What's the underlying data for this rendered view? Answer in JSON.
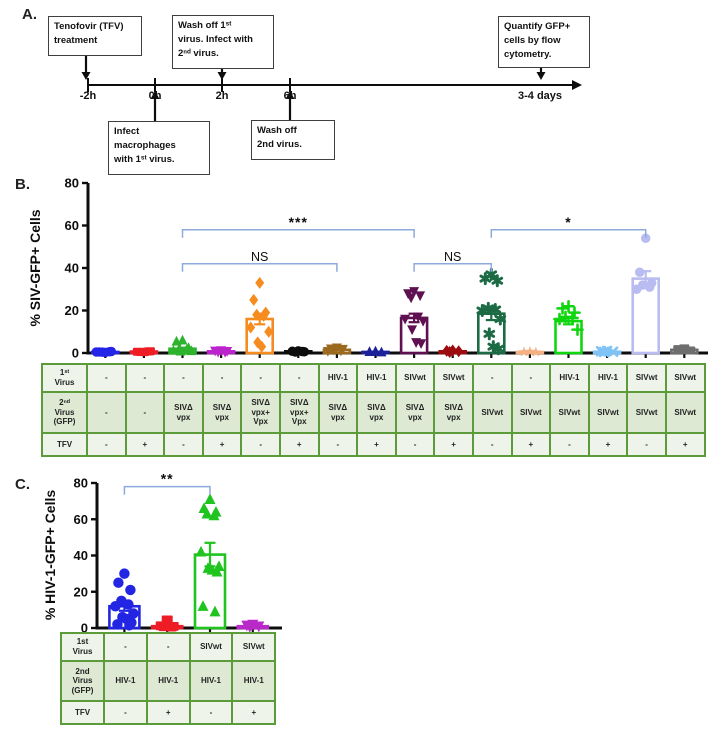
{
  "panel_a": {
    "label": "A.",
    "boxes": [
      "Tenofovir (TFV)\ntreatment",
      "Wash off 1ˢᵗ\nvirus. Infect with\n2ⁿᵈ virus.",
      "Quantify GFP+\ncells by flow\ncytometry.",
      "Infect\nmacrophages\nwith 1ˢᵗ virus.",
      "Wash off\n2nd virus."
    ],
    "tick_labels": [
      "-2h",
      "0h",
      "2h",
      "6h",
      "3-4 days"
    ]
  },
  "panel_b": {
    "label": "B."
  },
  "panel_c": {
    "label": "C."
  },
  "colors": {
    "bracket": "#8ea9db",
    "axis": "#0d0d0d",
    "table_border": "#5b9b3a",
    "table_bg_light": "#eff4ea",
    "table_bg_dark": "#dde9d3"
  },
  "chart_data": [
    {
      "type": "scatter-bar",
      "title": "",
      "ylabel": "% SIV-GFP+ Cells",
      "xlabel": "",
      "ylim": [
        0,
        80
      ],
      "yticks": [
        0,
        20,
        40,
        60,
        80
      ],
      "grid": false,
      "groups": [
        {
          "marker": "circle",
          "color": "#2424e8",
          "mean": 0.5,
          "sem": 0,
          "points": [
            0.3,
            0.5,
            0.7,
            0.4,
            0.6,
            0.5
          ]
        },
        {
          "marker": "square",
          "color": "#ee1c25",
          "mean": 0.7,
          "sem": 0,
          "points": [
            0.4,
            0.6,
            0.8,
            0.5,
            0.7
          ]
        },
        {
          "marker": "triangle-up",
          "color": "#2db32d",
          "mean": 2,
          "sem": 0.5,
          "points": [
            6,
            5.5,
            2.5,
            2,
            1.5,
            1.2,
            1,
            0.8
          ]
        },
        {
          "marker": "triangle-down",
          "color": "#bb23cc",
          "mean": 0.8,
          "sem": 0,
          "points": [
            1.2,
            1,
            0.8,
            0.5,
            0.4
          ]
        },
        {
          "marker": "diamond",
          "color": "#f68b1f",
          "mean": 16,
          "sem": 2.5,
          "points": [
            33,
            25,
            19,
            18,
            17.5,
            12,
            10,
            5,
            3
          ]
        },
        {
          "marker": "circle",
          "color": "#0d0d0d",
          "mean": 0.8,
          "sem": 0,
          "points": [
            1,
            0.8,
            0.6,
            0.5,
            0.7
          ]
        },
        {
          "marker": "triangle-down",
          "color": "#9b6a1f",
          "mean": 1.5,
          "sem": 0,
          "points": [
            2.5,
            2,
            1.8,
            1.5,
            1,
            0.8
          ]
        },
        {
          "marker": "triangle-up",
          "color": "#1c2099",
          "mean": 0.5,
          "sem": 0,
          "points": [
            0.8,
            0.6,
            0.4
          ]
        },
        {
          "marker": "triangle-down",
          "color": "#5e1050",
          "mean": 16.5,
          "sem": 2,
          "points": [
            29,
            28,
            27,
            26,
            17,
            16,
            15,
            11,
            5,
            4.5
          ]
        },
        {
          "marker": "diamond",
          "color": "#9e0b0f",
          "mean": 0.8,
          "sem": 0,
          "points": [
            1.2,
            1,
            0.8,
            0.5
          ]
        },
        {
          "marker": "snowflake",
          "color": "#1c6b45",
          "mean": 18.5,
          "sem": 3,
          "points": [
            37,
            35,
            34,
            21,
            20.5,
            20,
            16,
            9,
            3,
            2
          ]
        },
        {
          "marker": "star",
          "color": "#f4b183",
          "mean": 0.5,
          "sem": 0,
          "points": [
            0.7,
            0.5,
            0.4
          ]
        },
        {
          "marker": "plus",
          "color": "#0fd60f",
          "mean": 15,
          "sem": 1.5,
          "points": [
            22,
            21,
            19,
            17,
            16.5,
            16,
            11
          ]
        },
        {
          "marker": "x",
          "color": "#7fc3f7",
          "mean": 0.6,
          "sem": 0,
          "points": [
            1,
            0.8,
            0.6,
            0.5
          ]
        },
        {
          "marker": "circle",
          "color": "#b9bcf0",
          "mean": 35,
          "sem": 3.5,
          "points": [
            54,
            38,
            33,
            32,
            31,
            30
          ]
        },
        {
          "marker": "square",
          "color": "#6e6e6e",
          "mean": 1.5,
          "sem": 0,
          "points": [
            2.2,
            1.8,
            1.2
          ]
        }
      ],
      "brackets": [
        {
          "from": 2,
          "to": 8,
          "y": 58,
          "label": "***"
        },
        {
          "from": 2,
          "to": 6,
          "y": 42,
          "label": "NS"
        },
        {
          "from": 8,
          "to": 10,
          "y": 42,
          "label": "NS"
        },
        {
          "from": 10,
          "to": 14,
          "y": 58,
          "label": "*"
        }
      ],
      "table": {
        "row_labels": [
          "1ˢᵗ\nVirus",
          "2ⁿᵈ\nVirus\n(GFP)",
          "TFV"
        ],
        "rows": [
          [
            "-",
            "-",
            "-",
            "-",
            "-",
            "-",
            "HIV-1",
            "HIV-1",
            "SIVwt",
            "SIVwt",
            "-",
            "-",
            "HIV-1",
            "HIV-1",
            "SIVwt",
            "SIVwt"
          ],
          [
            "-",
            "-",
            "SIVΔ\nvpx",
            "SIVΔ\nvpx",
            "SIVΔ\nvpx+\nVpx",
            "SIVΔ\nvpx+\nVpx",
            "SIVΔ\nvpx",
            "SIVΔ\nvpx",
            "SIVΔ\nvpx",
            "SIVΔ\nvpx",
            "SIVwt",
            "SIVwt",
            "SIVwt",
            "SIVwt",
            "SIVwt",
            "SIVwt"
          ],
          [
            "-",
            "+",
            "-",
            "+",
            "-",
            "+",
            "-",
            "+",
            "-",
            "+",
            "-",
            "+",
            "-",
            "+",
            "-",
            "+"
          ]
        ]
      }
    },
    {
      "type": "scatter-bar",
      "title": "",
      "ylabel": "% HIV-1-GFP+ Cells",
      "xlabel": "",
      "ylim": [
        0,
        80
      ],
      "yticks": [
        0,
        20,
        40,
        60,
        80
      ],
      "grid": false,
      "groups": [
        {
          "marker": "circle",
          "color": "#2226e3",
          "mean": 12,
          "sem": 2.5,
          "points": [
            30,
            25,
            21,
            15,
            13,
            12,
            8,
            6,
            5,
            3,
            2,
            1.5
          ]
        },
        {
          "marker": "square",
          "color": "#ee1c25",
          "mean": 1,
          "sem": 0,
          "points": [
            4.5,
            1.2,
            0.9,
            0.7,
            0.5
          ]
        },
        {
          "marker": "triangle-up",
          "color": "#1fc41f",
          "mean": 40.5,
          "sem": 6.5,
          "points": [
            71,
            66,
            64,
            63,
            62,
            42,
            34,
            33,
            32,
            31,
            12,
            9
          ]
        },
        {
          "marker": "triangle-down",
          "color": "#b928c9",
          "mean": 1,
          "sem": 0,
          "points": [
            2,
            1.5,
            1,
            0.7
          ]
        }
      ],
      "brackets": [
        {
          "from": 0,
          "to": 2,
          "y": 78,
          "label": "**"
        }
      ],
      "table": {
        "row_labels": [
          "1st\nVirus",
          "2nd\nVirus\n(GFP)",
          "TFV"
        ],
        "rows": [
          [
            "-",
            "-",
            "SIVwt",
            "SIVwt"
          ],
          [
            "HIV-1",
            "HIV-1",
            "HIV-1",
            "HIV-1"
          ],
          [
            "-",
            "+",
            "-",
            "+"
          ]
        ]
      }
    }
  ]
}
